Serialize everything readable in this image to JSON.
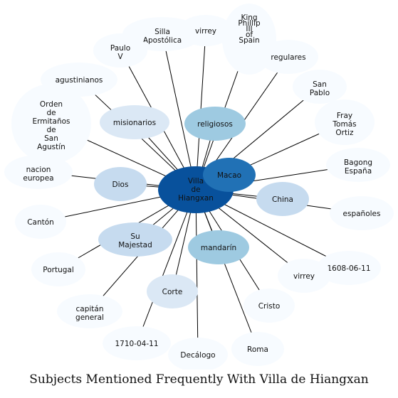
{
  "title": "Subjects Mentioned Frequently With Villa de Hiangxan",
  "hub": {
    "label": "Villa de Hiangxan",
    "color": "#08519c",
    "text_color": "#111111"
  },
  "colors": {
    "edge": "#000000",
    "tier1": "#2171b5",
    "tier2": "#9ecae1",
    "tier3": "#c6dbef",
    "tier4": "#dbe8f5",
    "tier5": "#f7fbff"
  },
  "nodes": [
    {
      "label": "Silla Apostólica",
      "tier": "tier5"
    },
    {
      "label": "virrey",
      "tier": "tier5"
    },
    {
      "label": "King Phillip III of Spain",
      "tier": "tier5"
    },
    {
      "label": "Paulo V",
      "tier": "tier5"
    },
    {
      "label": "regulares",
      "tier": "tier5"
    },
    {
      "label": "agustinianos",
      "tier": "tier5"
    },
    {
      "label": "San Pablo",
      "tier": "tier5"
    },
    {
      "label": "Orden de Ermitaños de San Agustín",
      "tier": "tier5"
    },
    {
      "label": "Fray Tomás Ortiz",
      "tier": "tier5"
    },
    {
      "label": "misionarios",
      "tier": "tier4"
    },
    {
      "label": "religiosos",
      "tier": "tier2"
    },
    {
      "label": "Bagong España",
      "tier": "tier5"
    },
    {
      "label": "nacion europea",
      "tier": "tier5"
    },
    {
      "label": "Macao",
      "tier": "tier1"
    },
    {
      "label": "Dios",
      "tier": "tier3"
    },
    {
      "label": "China",
      "tier": "tier3"
    },
    {
      "label": "españoles",
      "tier": "tier5"
    },
    {
      "label": "Cantón",
      "tier": "tier5"
    },
    {
      "label": "Su Majestad",
      "tier": "tier3"
    },
    {
      "label": "mandarín",
      "tier": "tier2"
    },
    {
      "label": "1608-06-11",
      "tier": "tier5"
    },
    {
      "label": "Portugal",
      "tier": "tier5"
    },
    {
      "label": "virrey",
      "tier": "tier5"
    },
    {
      "label": "Corte",
      "tier": "tier4"
    },
    {
      "label": "Cristo",
      "tier": "tier5"
    },
    {
      "label": "capitán general",
      "tier": "tier5"
    },
    {
      "label": "1710-04-11",
      "tier": "tier5"
    },
    {
      "label": "Roma",
      "tier": "tier5"
    },
    {
      "label": "Decálogo",
      "tier": "tier5"
    }
  ]
}
